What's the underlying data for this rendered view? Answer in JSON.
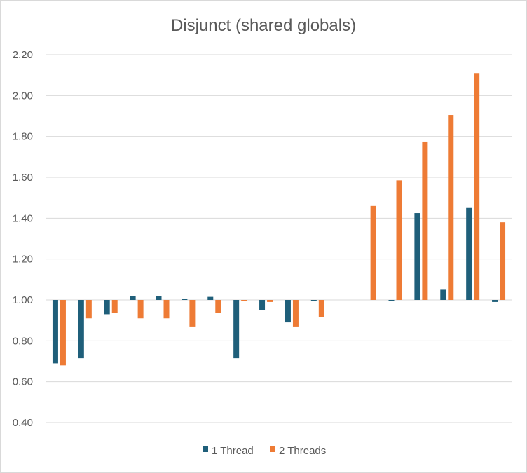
{
  "chart_data": {
    "type": "bar",
    "title": "Disjunct (shared globals)",
    "xlabel": "",
    "ylabel": "",
    "ylim": [
      0.4,
      2.2
    ],
    "yticks": [
      "0.40",
      "0.60",
      "0.80",
      "1.00",
      "1.20",
      "1.40",
      "1.60",
      "1.80",
      "2.00",
      "2.20"
    ],
    "baseline": 1.0,
    "grid": true,
    "legend_position": "bottom",
    "series": [
      {
        "name": "1 Thread",
        "color": "#1f5f7a",
        "values": [
          0.69,
          0.715,
          0.93,
          1.02,
          1.02,
          1.005,
          1.015,
          0.715,
          0.95,
          0.89,
          0.997,
          null,
          null,
          0.997,
          1.425,
          1.05,
          1.45,
          0.99
        ]
      },
      {
        "name": "2 Threads",
        "color": "#ee7b35",
        "values": [
          0.68,
          0.91,
          0.935,
          0.91,
          0.91,
          0.87,
          0.935,
          0.997,
          0.99,
          0.87,
          0.915,
          null,
          1.46,
          1.585,
          1.775,
          1.905,
          2.11,
          1.38
        ]
      }
    ]
  }
}
